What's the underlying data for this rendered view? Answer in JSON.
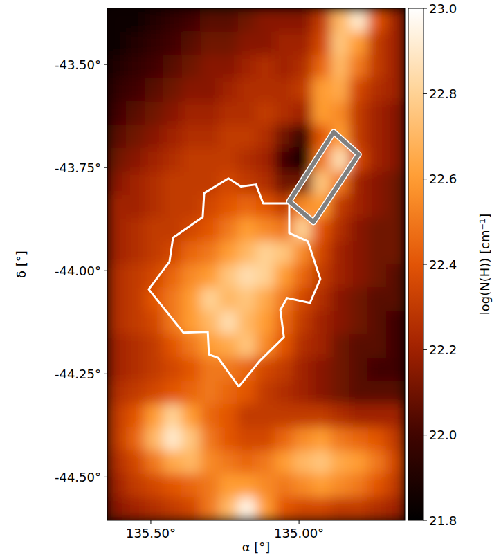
{
  "chart_data": {
    "type": "heatmap",
    "x_label": "α [°]",
    "y_label": "δ [°]",
    "xlim": [
      135.647,
      134.643
    ],
    "ylim": [
      -43.364,
      -44.605
    ],
    "xticks": [
      {
        "value": 135.5,
        "label": "135.50°"
      },
      {
        "value": 135.0,
        "label": "135.00°"
      }
    ],
    "yticks": [
      {
        "value": -43.5,
        "label": "-43.50°"
      },
      {
        "value": -43.75,
        "label": "-43.75°"
      },
      {
        "value": -44.0,
        "label": "-44.00°"
      },
      {
        "value": -44.25,
        "label": "-44.25°"
      },
      {
        "value": -44.5,
        "label": "-44.50°"
      }
    ],
    "colorbar_label": "log(N(H)) [cm⁻¹]",
    "clim": [
      21.8,
      23.0
    ],
    "cticks": [
      {
        "value": 23.0,
        "label": "23.0"
      },
      22.8,
      22.6,
      22.4,
      22.2,
      {
        "value": 22.0,
        "label": "22.0"
      },
      21.8
    ],
    "cells": [
      [
        21.85,
        21.85,
        21.9,
        21.95,
        22.0,
        22.05,
        22.05,
        22.1,
        22.15,
        22.15,
        22.15,
        22.3,
        22.7,
        22.9,
        22.4,
        22.2
      ],
      [
        21.85,
        21.9,
        21.95,
        22.0,
        22.05,
        22.1,
        22.1,
        22.15,
        22.15,
        22.2,
        22.2,
        22.35,
        22.75,
        22.6,
        22.3,
        22.2
      ],
      [
        21.9,
        21.95,
        22.0,
        22.05,
        22.1,
        22.15,
        22.15,
        22.2,
        22.25,
        22.2,
        22.25,
        22.45,
        22.7,
        22.5,
        22.3,
        22.2
      ],
      [
        21.95,
        22.0,
        22.05,
        22.1,
        22.15,
        22.15,
        22.2,
        22.25,
        22.25,
        22.25,
        22.3,
        22.6,
        22.65,
        22.35,
        22.25,
        22.2
      ],
      [
        22.0,
        22.05,
        22.1,
        22.15,
        22.2,
        22.2,
        22.25,
        22.25,
        22.3,
        22.25,
        22.2,
        22.6,
        22.55,
        22.3,
        22.2,
        22.15
      ],
      [
        22.05,
        22.1,
        22.15,
        22.2,
        22.25,
        22.25,
        22.3,
        22.3,
        22.25,
        22.1,
        21.95,
        22.4,
        22.6,
        22.3,
        22.2,
        22.15
      ],
      [
        22.1,
        22.15,
        22.2,
        22.25,
        22.3,
        22.3,
        22.3,
        22.25,
        22.2,
        22.0,
        21.85,
        22.5,
        22.85,
        22.35,
        22.2,
        22.15
      ],
      [
        22.15,
        22.2,
        22.25,
        22.3,
        22.3,
        22.3,
        22.35,
        22.3,
        22.25,
        22.1,
        22.1,
        22.75,
        22.5,
        22.2,
        22.15,
        22.1
      ],
      [
        22.2,
        22.2,
        22.25,
        22.3,
        22.3,
        22.35,
        22.4,
        22.45,
        22.4,
        22.3,
        22.55,
        22.6,
        22.3,
        22.2,
        22.15,
        22.1
      ],
      [
        22.2,
        22.25,
        22.3,
        22.3,
        22.35,
        22.4,
        22.5,
        22.6,
        22.55,
        22.5,
        22.8,
        22.4,
        22.25,
        22.15,
        22.1,
        22.1
      ],
      [
        22.2,
        22.25,
        22.3,
        22.35,
        22.45,
        22.5,
        22.6,
        22.7,
        22.8,
        22.75,
        22.55,
        22.35,
        22.2,
        22.15,
        22.1,
        22.1
      ],
      [
        22.25,
        22.3,
        22.35,
        22.45,
        22.55,
        22.6,
        22.75,
        22.85,
        22.8,
        22.6,
        22.45,
        22.3,
        22.2,
        22.15,
        22.1,
        22.05
      ],
      [
        22.25,
        22.3,
        22.4,
        22.5,
        22.6,
        22.8,
        22.7,
        22.75,
        22.65,
        22.5,
        22.35,
        22.25,
        22.15,
        22.1,
        22.05,
        22.05
      ],
      [
        22.25,
        22.3,
        22.35,
        22.5,
        22.6,
        22.7,
        22.85,
        22.7,
        22.6,
        22.45,
        22.3,
        22.2,
        22.15,
        22.1,
        22.05,
        22.0
      ],
      [
        22.2,
        22.25,
        22.3,
        22.4,
        22.5,
        22.6,
        22.65,
        22.75,
        22.55,
        22.4,
        22.25,
        22.2,
        22.1,
        22.05,
        22.05,
        22.0
      ],
      [
        22.2,
        22.25,
        22.3,
        22.35,
        22.4,
        22.5,
        22.5,
        22.45,
        22.35,
        22.3,
        22.2,
        22.15,
        22.1,
        22.05,
        22.0,
        22.0
      ],
      [
        22.25,
        22.3,
        22.35,
        22.4,
        22.45,
        22.5,
        22.45,
        22.4,
        22.3,
        22.25,
        22.2,
        22.15,
        22.1,
        22.05,
        22.05,
        22.05
      ],
      [
        22.3,
        22.4,
        22.6,
        22.8,
        22.6,
        22.45,
        22.4,
        22.3,
        22.3,
        22.3,
        22.3,
        22.3,
        22.25,
        22.2,
        22.2,
        22.2
      ],
      [
        22.3,
        22.45,
        22.7,
        22.9,
        22.75,
        22.5,
        22.4,
        22.35,
        22.35,
        22.45,
        22.55,
        22.6,
        22.5,
        22.45,
        22.4,
        22.3
      ],
      [
        22.25,
        22.35,
        22.5,
        22.65,
        22.7,
        22.55,
        22.5,
        22.45,
        22.5,
        22.6,
        22.7,
        22.75,
        22.65,
        22.6,
        22.5,
        22.35
      ],
      [
        22.2,
        22.3,
        22.35,
        22.4,
        22.45,
        22.5,
        22.6,
        22.6,
        22.55,
        22.5,
        22.55,
        22.6,
        22.55,
        22.5,
        22.4,
        22.3
      ],
      [
        22.15,
        22.2,
        22.25,
        22.3,
        22.35,
        22.5,
        22.7,
        22.95,
        22.6,
        22.4,
        22.35,
        22.35,
        22.3,
        22.3,
        22.25,
        22.2
      ]
    ],
    "regions": [
      {
        "color": "#ffffff",
        "ra": [
          135.033,
          135.033,
          134.97,
          134.928,
          134.963,
          135.04,
          135.063,
          135.051,
          135.133,
          135.203,
          135.273,
          135.304,
          135.308,
          135.39,
          135.507,
          135.437,
          135.425,
          135.325,
          135.32,
          135.238,
          135.196,
          135.145,
          135.121
        ],
        "dec": [
          -43.837,
          -43.909,
          -43.929,
          -44.02,
          -44.078,
          -44.066,
          -44.095,
          -44.161,
          -44.219,
          -44.281,
          -44.211,
          -44.203,
          -44.148,
          -44.15,
          -44.045,
          -43.978,
          -43.92,
          -43.87,
          -43.812,
          -43.776,
          -43.796,
          -43.791,
          -43.837
        ]
      },
      {
        "color": "#808080",
        "ra": [
          134.883,
          134.799,
          134.951,
          135.033
        ],
        "dec": [
          -43.664,
          -43.718,
          -43.882,
          -43.832
        ]
      }
    ]
  }
}
